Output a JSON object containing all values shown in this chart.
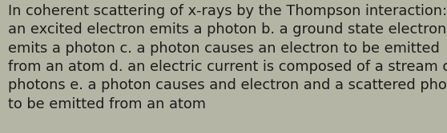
{
  "text": "In coherent scattering of x-rays by the Thompson interaction: a.\nan excited electron emits a photon b. a ground state electron\nemits a photon c. a photon causes an electron to be emitted\nfrom an atom d. an electric current is composed of a stream of\nphotons e. a photon causes and electron and a scattered photon\nto be emitted from an atom",
  "background_color": "#b5b5a5",
  "text_color": "#1c1c1c",
  "font_size": 12.8,
  "figwidth": 5.58,
  "figheight": 1.67,
  "dpi": 100
}
